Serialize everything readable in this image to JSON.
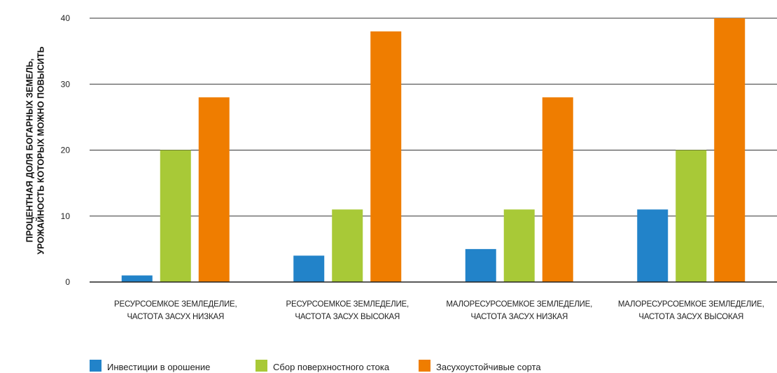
{
  "chart_data": {
    "type": "bar",
    "title": "",
    "ylabel_lines": [
      "ПРОЦЕНТНАЯ ДОЛЯ БОГАРНЫХ ЗЕМЕЛЬ,",
      "УРОЖАЙНОСТЬ КОТОРЫХ МОЖНО ПОВЫСИТЬ"
    ],
    "xlabel": "",
    "ylim": [
      0,
      40
    ],
    "yticks": [
      0,
      10,
      20,
      30,
      40
    ],
    "grid": true,
    "legend_position": "bottom-left",
    "categories": [
      [
        "РЕСУРСОЕМКОЕ ЗЕМЛЕДЕЛИЕ,",
        "ЧАСТОТА ЗАСУХ НИЗКАЯ"
      ],
      [
        "РЕСУРСОЕМКОЕ ЗЕМЛЕДЕЛИЕ,",
        "ЧАСТОТА ЗАСУХ ВЫСОКАЯ"
      ],
      [
        "МАЛОРЕСУРСОЕМКОЕ ЗЕМЛЕДЕЛИЕ,",
        "ЧАСТОТА ЗАСУХ НИЗКАЯ"
      ],
      [
        "МАЛОРЕСУРСОЕМКОЕ ЗЕМЛЕДЕЛИЕ,",
        "ЧАСТОТА ЗАСУХ ВЫСОКАЯ"
      ]
    ],
    "series": [
      {
        "name": "Инвестиции в орошение",
        "color": "#2283c9",
        "values": [
          1,
          4,
          5,
          11
        ]
      },
      {
        "name": "Сбор поверхностного стока",
        "color": "#a8c937",
        "values": [
          20,
          11,
          11,
          20
        ]
      },
      {
        "name": "Засухоустойчивые сорта",
        "color": "#ef7d00",
        "values": [
          28,
          38,
          28,
          40
        ]
      }
    ]
  }
}
